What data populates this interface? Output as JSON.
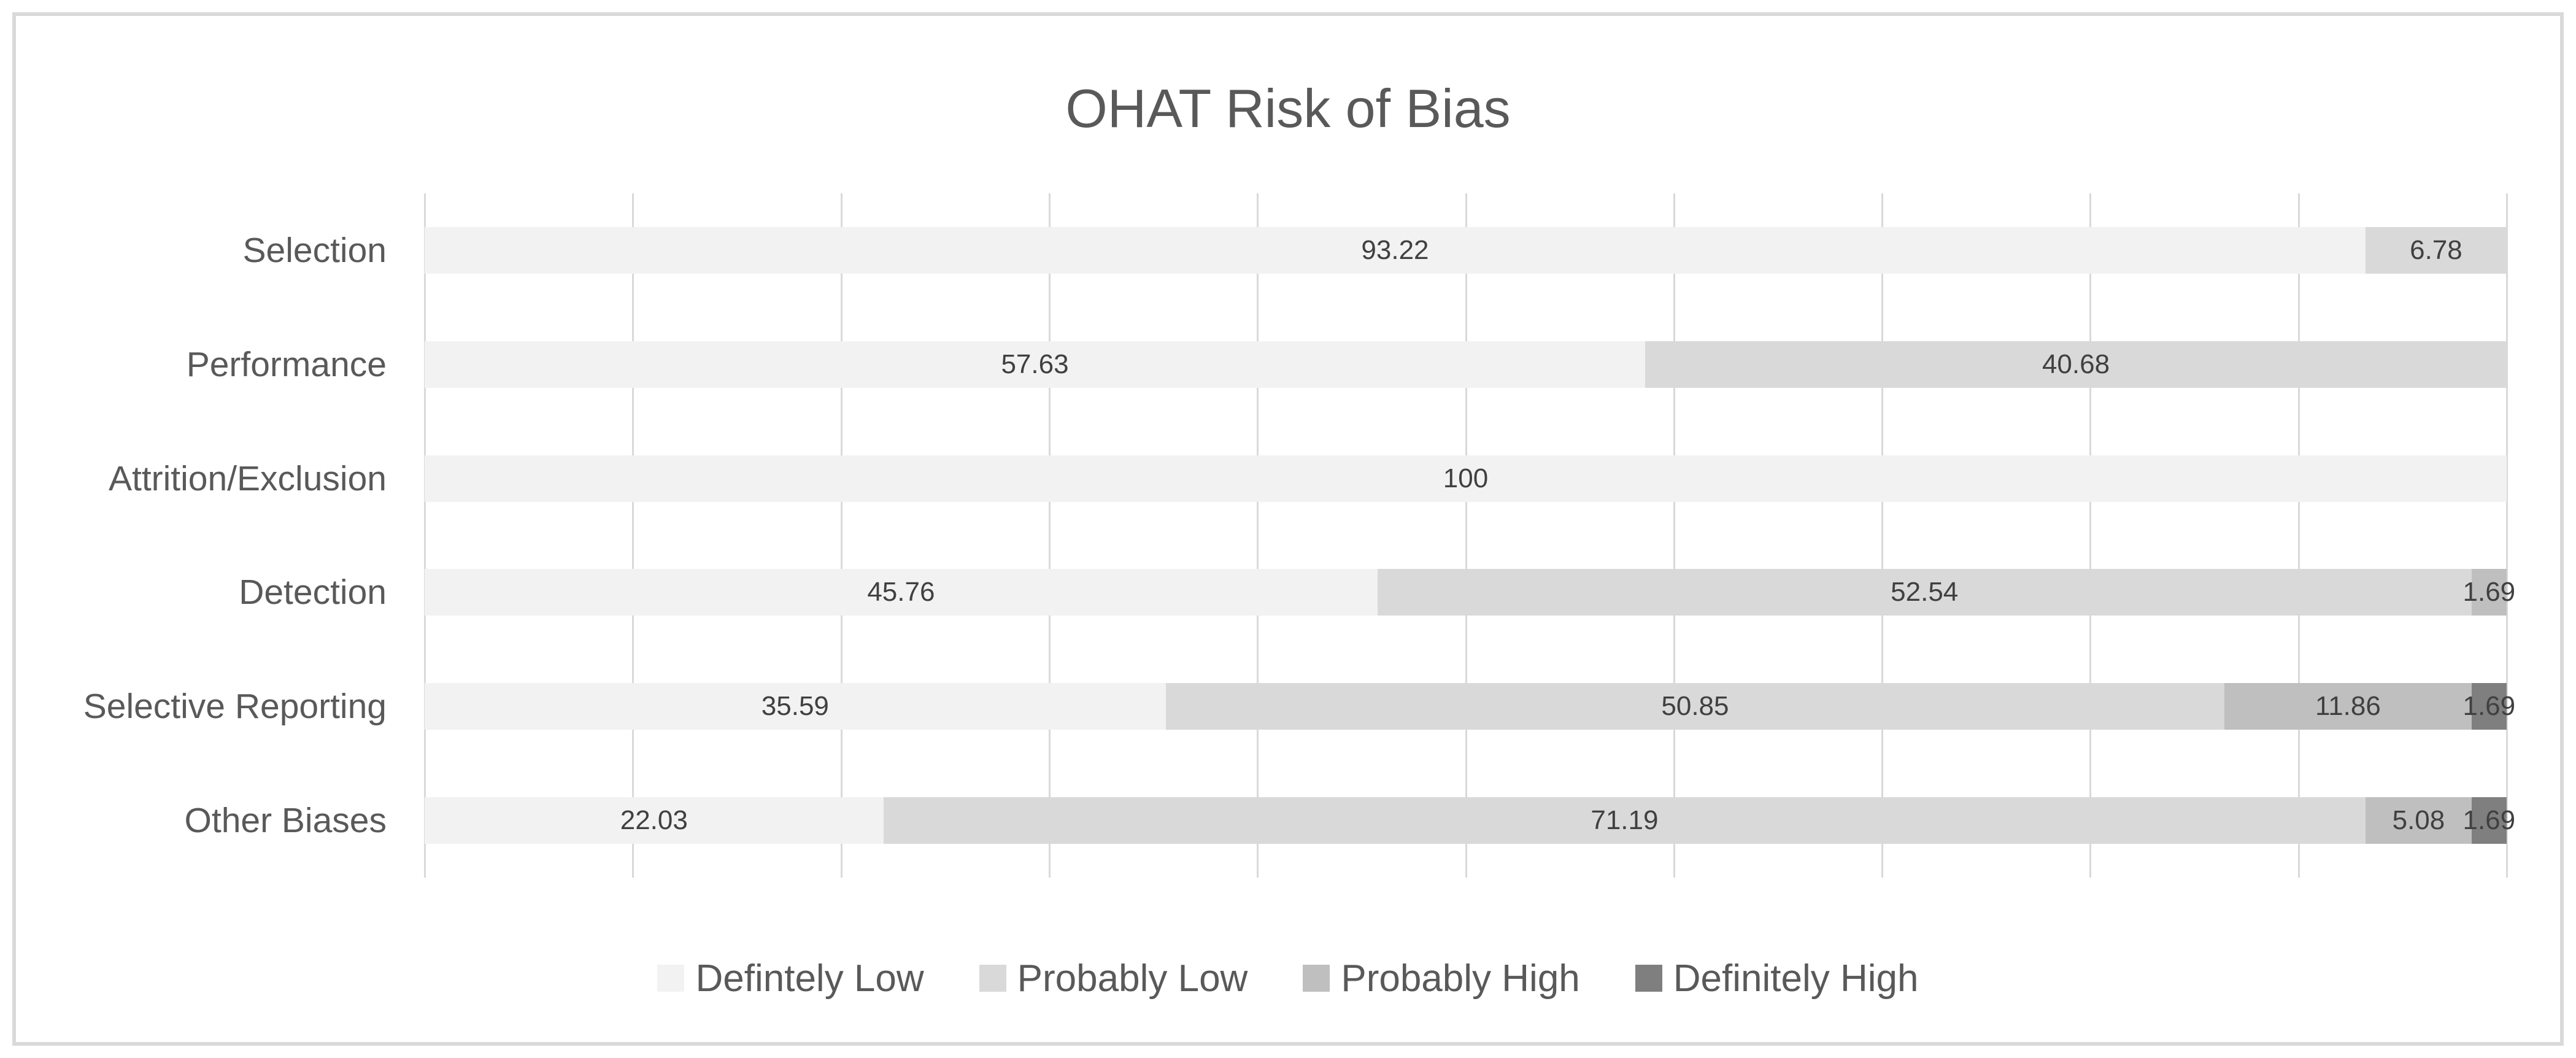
{
  "chart_data": {
    "type": "bar",
    "orientation": "horizontal",
    "stacked": true,
    "normalized_100_percent": true,
    "title": "OHAT Risk of Bias",
    "categories": [
      "Selection",
      "Performance",
      "Attrition/Exclusion",
      "Detection",
      "Selective Reporting",
      "Other Biases"
    ],
    "series": [
      {
        "name": "Defintely Low",
        "color": "#f2f2f2",
        "values": [
          93.22,
          57.63,
          100,
          45.76,
          35.59,
          22.03
        ]
      },
      {
        "name": "Probably Low",
        "color": "#d9d9d9",
        "values": [
          6.78,
          40.68,
          0,
          52.54,
          50.85,
          71.19
        ]
      },
      {
        "name": "Probably High",
        "color": "#bfbfbf",
        "values": [
          0,
          0,
          0,
          1.69,
          11.86,
          5.08
        ]
      },
      {
        "name": "Definitely High",
        "color": "#7f7f7f",
        "values": [
          0,
          0,
          0,
          0,
          1.69,
          1.69
        ]
      }
    ],
    "data_labels_visible": true,
    "data_labels": [
      [
        "93.22",
        "6.78"
      ],
      [
        "57.63",
        "40.68"
      ],
      [
        "100"
      ],
      [
        "45.76",
        "52.54",
        "1.69"
      ],
      [
        "35.59",
        "50.85",
        "11.86",
        "1.69"
      ],
      [
        "22.03",
        "71.19",
        "5.08",
        "1.69"
      ]
    ],
    "axis": {
      "min": 0,
      "max": 100,
      "gridline_step": 10,
      "gridlines_visible": true,
      "tick_labels_visible": false
    },
    "legend_position": "bottom"
  },
  "colors": {
    "background": "#ffffff",
    "chart_border": "#d9d9d9",
    "gridline": "#d9d9d9",
    "title_text": "#595959",
    "axis_text": "#595959",
    "data_label_text": "#404040"
  }
}
